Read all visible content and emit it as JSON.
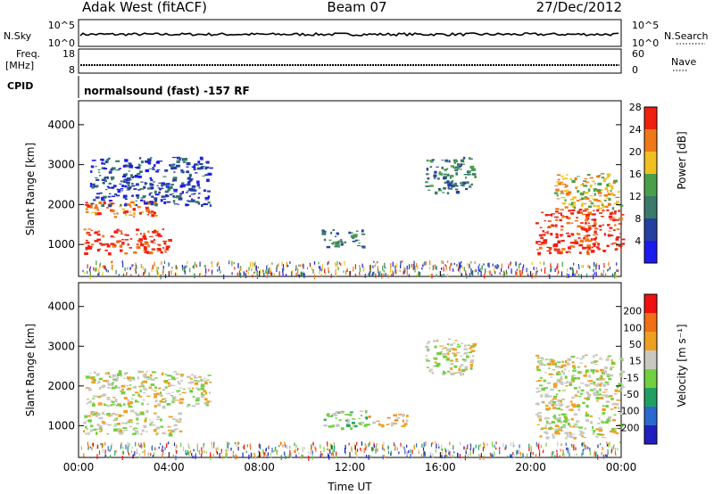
{
  "header": {
    "left": "Adak West (fitACF)",
    "center": "Beam 07",
    "right": "27/Dec/2012"
  },
  "top_panels": {
    "nsky_label": "N.Sky",
    "nsky_ticks": [
      "10^5",
      "10^0"
    ],
    "nsearch_label": "N.Search",
    "nsearch_ticks": [
      "10^5",
      "10^0"
    ],
    "freq_label_1": "Freq.",
    "freq_label_2": "[MHz]",
    "freq_ticks": [
      "18",
      "8"
    ],
    "nave_label": "Nave",
    "nave_ticks": [
      "60",
      "0"
    ],
    "cpid_label": "CPID",
    "cpid_text": "normalsound (fast) -157 RF"
  },
  "chart_data": [
    {
      "type": "heatmap",
      "name": "power",
      "ylabel": "Slant Range [km]",
      "ylim": [
        200,
        4600
      ],
      "yticks": [
        "1000",
        "2000",
        "3000",
        "4000"
      ],
      "xlim": [
        0,
        24
      ],
      "colorbar": {
        "label": "Power [dB]",
        "ticks": [
          "4",
          "8",
          "12",
          "16",
          "20",
          "24",
          "28"
        ],
        "colors": [
          "#1b1bf0",
          "#2640a0",
          "#3a7a6a",
          "#4aa04a",
          "#f0c020",
          "#f07818",
          "#f02010"
        ]
      },
      "regions": [
        {
          "t": [
            0.2,
            4.0
          ],
          "r": [
            800,
            1400
          ],
          "level": 6
        },
        {
          "t": [
            0.2,
            3.5
          ],
          "r": [
            1700,
            2100
          ],
          "level": 5
        },
        {
          "t": [
            0.5,
            5.8
          ],
          "r": [
            2000,
            3200
          ],
          "level": 1
        },
        {
          "t": [
            10.7,
            12.6
          ],
          "r": [
            950,
            1400
          ],
          "level": 2
        },
        {
          "t": [
            15.3,
            17.5
          ],
          "r": [
            2300,
            3200
          ],
          "level": 2
        },
        {
          "t": [
            20.2,
            24.0
          ],
          "r": [
            800,
            1900
          ],
          "level": 6
        },
        {
          "t": [
            21.0,
            24.0
          ],
          "r": [
            1900,
            2800
          ],
          "level": 4
        }
      ]
    },
    {
      "type": "heatmap",
      "name": "velocity",
      "ylabel": "Slant Range [km]",
      "ylim": [
        200,
        4600
      ],
      "yticks": [
        "1000",
        "2000",
        "3000",
        "4000"
      ],
      "xlim": [
        0,
        24
      ],
      "xticks": [
        "00:00",
        "04:00",
        "08:00",
        "12:00",
        "16:00",
        "20:00",
        "00:00"
      ],
      "xlabel": "Time UT",
      "colorbar": {
        "label": "Velocity [m s⁻¹]",
        "ticks": [
          "200",
          "100",
          "50",
          "15",
          "-15",
          "-50",
          "-100",
          "-200"
        ],
        "colors": [
          "#2020c0",
          "#2a6ad0",
          "#20a060",
          "#70d040",
          "#c8c8c0",
          "#f0a020",
          "#f07018",
          "#f01010"
        ]
      },
      "regions": [
        {
          "t": [
            0.2,
            4.5
          ],
          "r": [
            800,
            1400
          ],
          "level": 4
        },
        {
          "t": [
            0.3,
            5.8
          ],
          "r": [
            1500,
            2400
          ],
          "level": 4
        },
        {
          "t": [
            10.7,
            12.8
          ],
          "r": [
            950,
            1400
          ],
          "level": 3
        },
        {
          "t": [
            12.8,
            14.5
          ],
          "r": [
            1000,
            1300
          ],
          "level": 5
        },
        {
          "t": [
            15.3,
            17.5
          ],
          "r": [
            2300,
            3200
          ],
          "level": 4
        },
        {
          "t": [
            20.2,
            24.0
          ],
          "r": [
            700,
            2800
          ],
          "level": 4
        }
      ]
    }
  ]
}
